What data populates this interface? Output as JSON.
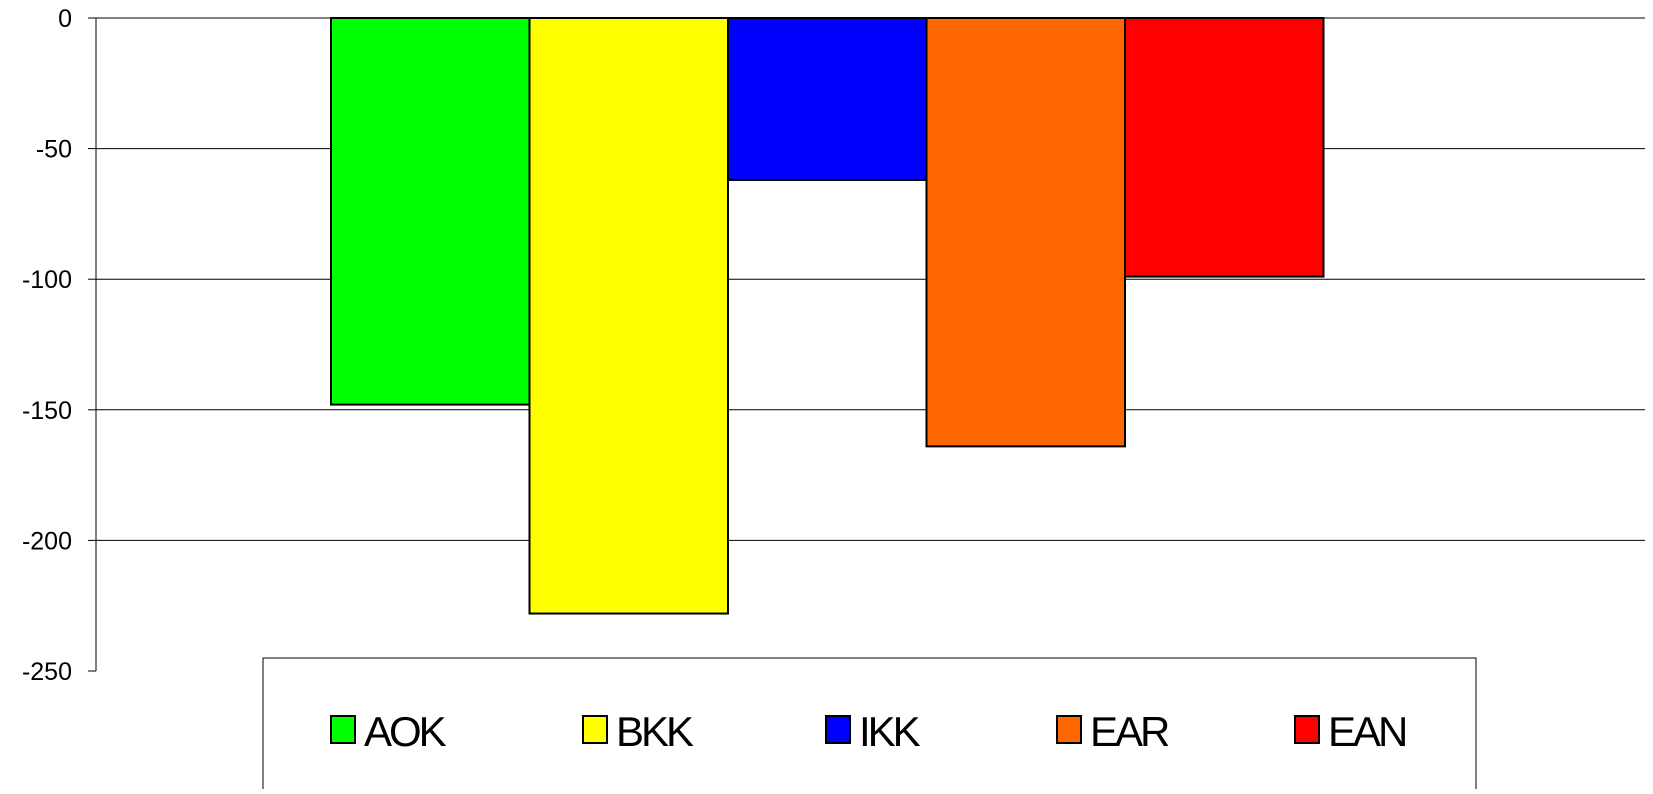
{
  "chart_data": {
    "type": "bar",
    "categories": [
      "AOK",
      "BKK",
      "IKK",
      "EAR",
      "EAN"
    ],
    "series": [
      {
        "values": [
          -148,
          -228,
          -62,
          -164,
          -99
        ],
        "colors": [
          "#00ff00",
          "#ffff00",
          "#0000ff",
          "#ff6600",
          "#ff0000"
        ]
      }
    ],
    "ylim": [
      -250,
      0
    ],
    "yticks": [
      0,
      -50,
      -100,
      -150,
      -200,
      -250
    ],
    "ytick_labels": [
      "0",
      "-50",
      "-100",
      "-150",
      "-200",
      "-250"
    ],
    "grid": true,
    "legend": {
      "position": "bottom",
      "entries": [
        {
          "label": "AOK",
          "color": "#00ff00"
        },
        {
          "label": "BKK",
          "color": "#ffff00"
        },
        {
          "label": "IKK",
          "color": "#0000ff"
        },
        {
          "label": "EAR",
          "color": "#ff6600"
        },
        {
          "label": "EAN",
          "color": "#ff0000"
        }
      ]
    },
    "title": "",
    "xlabel": "",
    "ylabel": ""
  }
}
